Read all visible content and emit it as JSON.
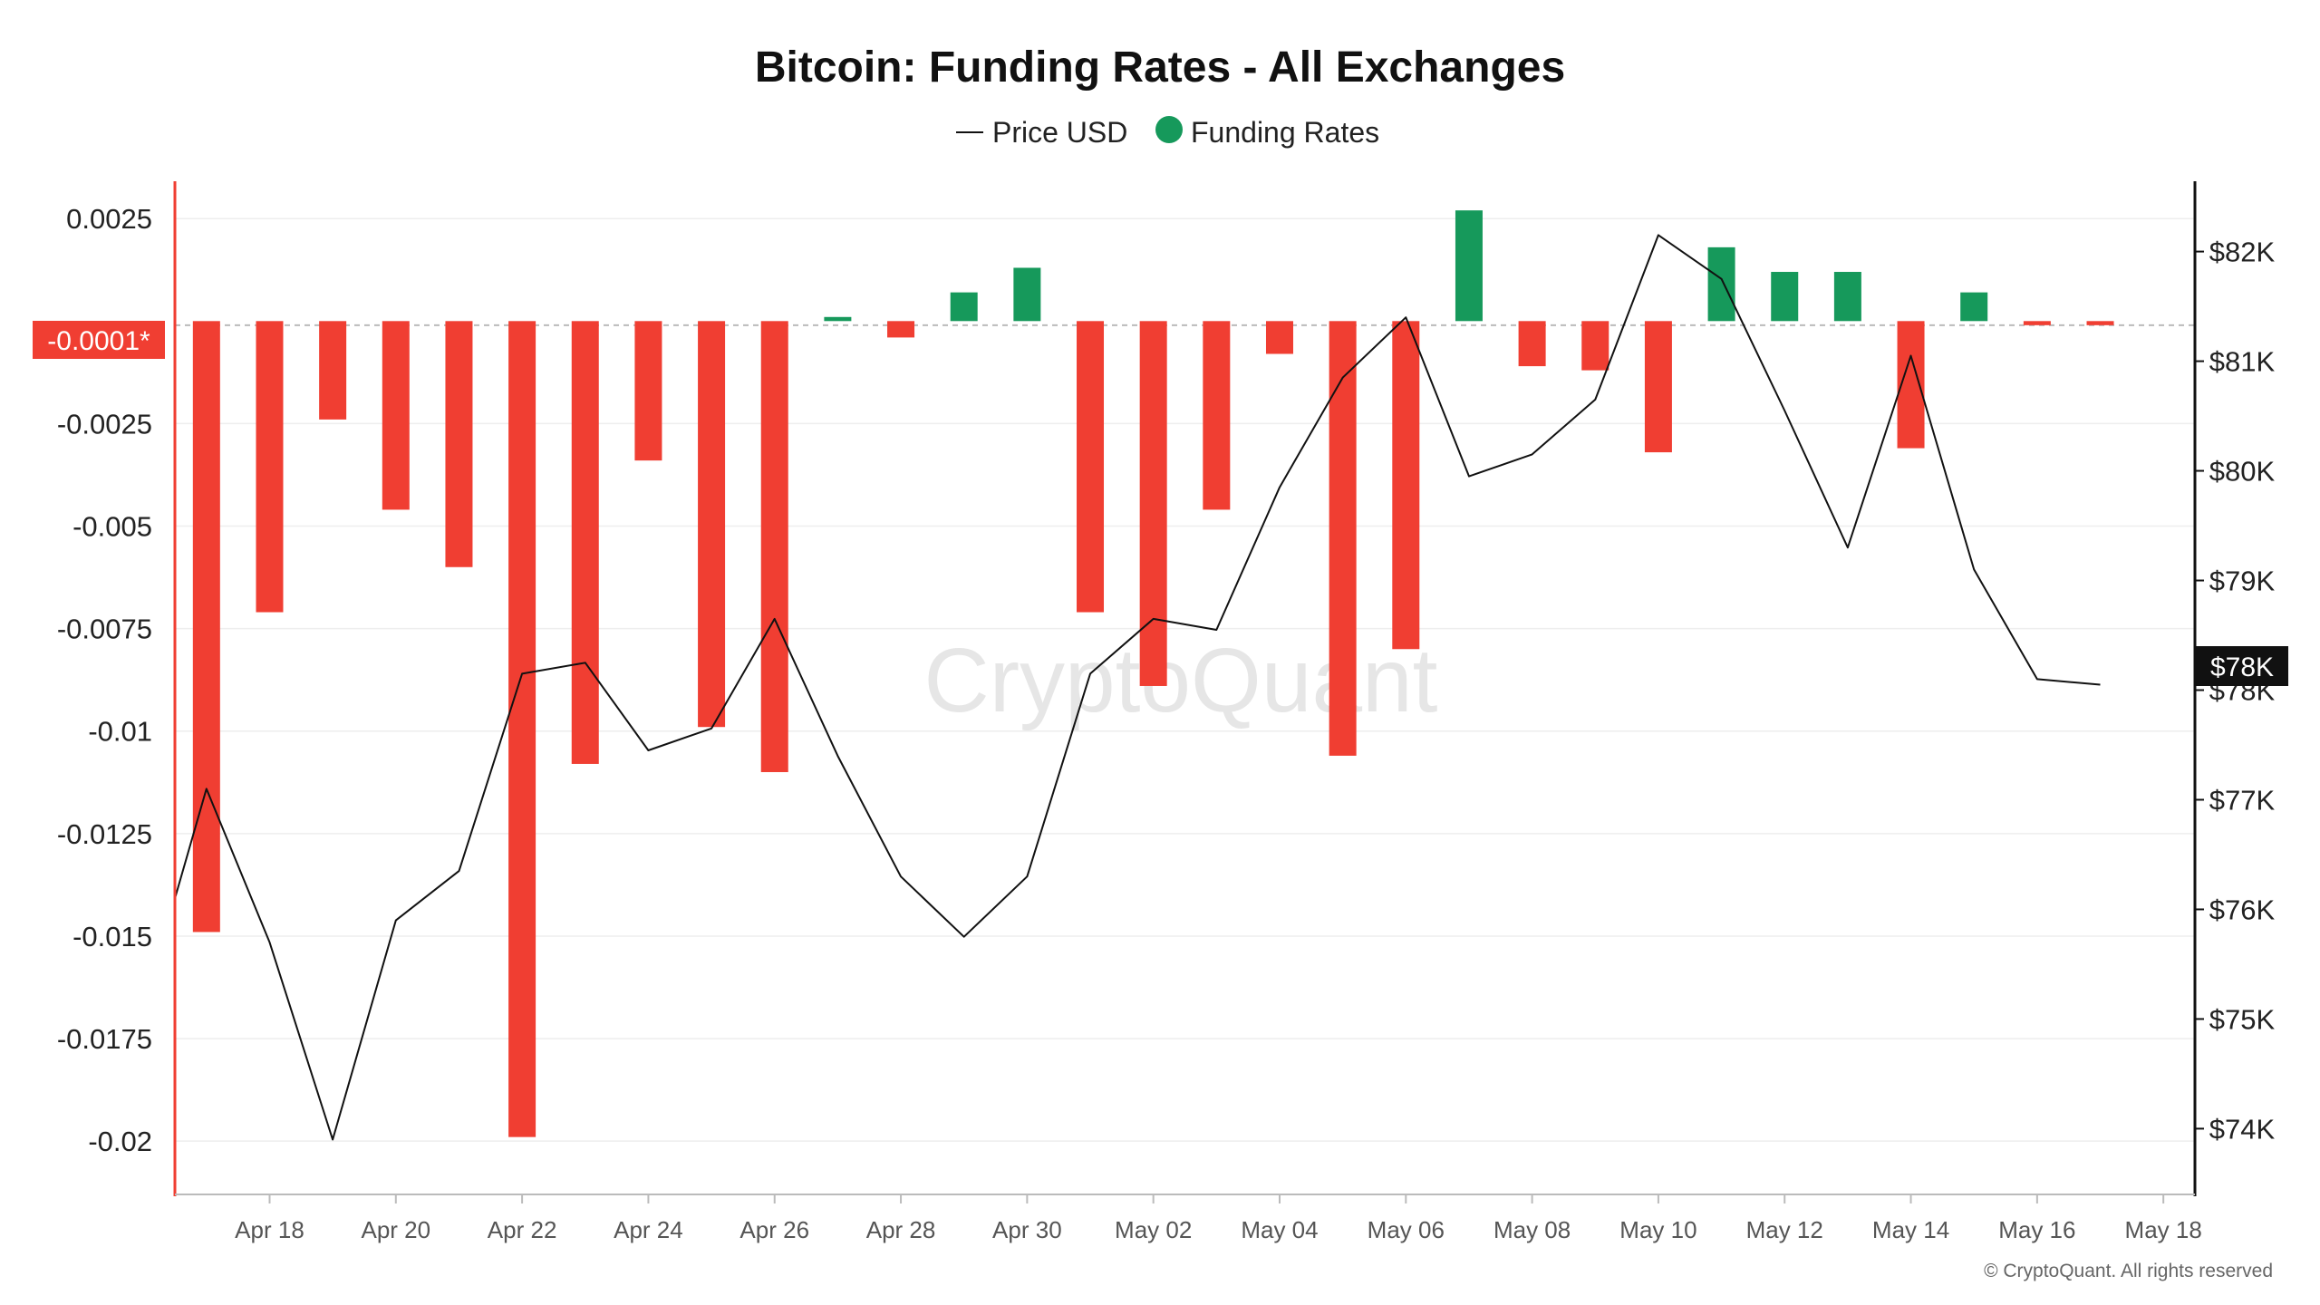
{
  "chart_data": {
    "type": "bar",
    "title": "Bitcoin: Funding Rates - All Exchanges",
    "legend": [
      {
        "label": "Price USD",
        "marker": "line",
        "color": "#111111"
      },
      {
        "label": "Funding Rates",
        "marker": "dot",
        "color": "#16995b"
      }
    ],
    "legend_placement": "top-center",
    "grid": true,
    "y_left": {
      "ylim": [
        -0.0213,
        0.0033
      ],
      "ticks": [
        {
          "value": 0.0025,
          "label": "0.0025"
        },
        {
          "value": -0.0025,
          "label": "-0.0025"
        },
        {
          "value": -0.005,
          "label": "-0.005"
        },
        {
          "value": -0.0075,
          "label": "-0.0075"
        },
        {
          "value": -0.01,
          "label": "-0.01"
        },
        {
          "value": -0.0125,
          "label": "-0.0125"
        },
        {
          "value": -0.015,
          "label": "-0.015"
        },
        {
          "value": -0.0175,
          "label": "-0.0175"
        },
        {
          "value": -0.02,
          "label": "-0.02"
        }
      ],
      "current_value_label": "-0.0001*",
      "current_value": -0.0001
    },
    "y_right": {
      "ylim": [
        73400,
        82600
      ],
      "ticks": [
        {
          "value": 82000,
          "label": "$82K"
        },
        {
          "value": 81000,
          "label": "$81K"
        },
        {
          "value": 80000,
          "label": "$80K"
        },
        {
          "value": 79000,
          "label": "$79K"
        },
        {
          "value": 78000,
          "label": "$78K"
        },
        {
          "value": 77000,
          "label": "$77K"
        },
        {
          "value": 76000,
          "label": "$76K"
        },
        {
          "value": 75000,
          "label": "$75K"
        },
        {
          "value": 74000,
          "label": "$74K"
        }
      ],
      "current_value_label": "$78K",
      "current_value": 78000
    },
    "x_range": [
      "2025-04-16T12:00",
      "2025-05-18T12:00"
    ],
    "x_ticks": [
      {
        "date": "2025-04-18",
        "label": "Apr 18"
      },
      {
        "date": "2025-04-20",
        "label": "Apr 20"
      },
      {
        "date": "2025-04-22",
        "label": "Apr 22"
      },
      {
        "date": "2025-04-24",
        "label": "Apr 24"
      },
      {
        "date": "2025-04-26",
        "label": "Apr 26"
      },
      {
        "date": "2025-04-28",
        "label": "Apr 28"
      },
      {
        "date": "2025-04-30",
        "label": "Apr 30"
      },
      {
        "date": "2025-05-02",
        "label": "May 02"
      },
      {
        "date": "2025-05-04",
        "label": "May 04"
      },
      {
        "date": "2025-05-06",
        "label": "May 06"
      },
      {
        "date": "2025-05-08",
        "label": "May 08"
      },
      {
        "date": "2025-05-10",
        "label": "May 10"
      },
      {
        "date": "2025-05-12",
        "label": "May 12"
      },
      {
        "date": "2025-05-14",
        "label": "May 14"
      },
      {
        "date": "2025-05-16",
        "label": "May 16"
      },
      {
        "date": "2025-05-18",
        "label": "May 18"
      }
    ],
    "series": [
      {
        "name": "Funding Rates",
        "type": "bar",
        "positive_color": "#16995b",
        "negative_color": "#f03e32",
        "points": [
          {
            "date": "2025-04-17",
            "value": -0.0149
          },
          {
            "date": "2025-04-18",
            "value": -0.0071
          },
          {
            "date": "2025-04-19",
            "value": -0.0024
          },
          {
            "date": "2025-04-20",
            "value": -0.0046
          },
          {
            "date": "2025-04-21",
            "value": -0.006
          },
          {
            "date": "2025-04-22",
            "value": -0.0199
          },
          {
            "date": "2025-04-23",
            "value": -0.0108
          },
          {
            "date": "2025-04-24",
            "value": -0.0034
          },
          {
            "date": "2025-04-25",
            "value": -0.0099
          },
          {
            "date": "2025-04-26",
            "value": -0.011
          },
          {
            "date": "2025-04-27",
            "value": 0.0001
          },
          {
            "date": "2025-04-28",
            "value": -0.0004
          },
          {
            "date": "2025-04-29",
            "value": 0.0007
          },
          {
            "date": "2025-04-30",
            "value": 0.0013
          },
          {
            "date": "2025-05-01",
            "value": -0.0071
          },
          {
            "date": "2025-05-02",
            "value": -0.0089
          },
          {
            "date": "2025-05-03",
            "value": -0.0046
          },
          {
            "date": "2025-05-04",
            "value": -0.0008
          },
          {
            "date": "2025-05-05",
            "value": -0.0106
          },
          {
            "date": "2025-05-06",
            "value": -0.008
          },
          {
            "date": "2025-05-07",
            "value": 0.0027
          },
          {
            "date": "2025-05-08",
            "value": -0.0011
          },
          {
            "date": "2025-05-09",
            "value": -0.0012
          },
          {
            "date": "2025-05-10",
            "value": -0.0032
          },
          {
            "date": "2025-05-11",
            "value": 0.0018
          },
          {
            "date": "2025-05-12",
            "value": 0.0012
          },
          {
            "date": "2025-05-13",
            "value": 0.0012
          },
          {
            "date": "2025-05-14",
            "value": -0.0031
          },
          {
            "date": "2025-05-15",
            "value": 0.0007
          },
          {
            "date": "2025-05-16",
            "value": -0.0001
          },
          {
            "date": "2025-05-17",
            "value": -0.0001
          }
        ]
      },
      {
        "name": "Price USD",
        "type": "line",
        "color": "#111111",
        "points": [
          {
            "date": "2025-04-16T12:00",
            "value": 76100
          },
          {
            "date": "2025-04-17",
            "value": 77100
          },
          {
            "date": "2025-04-18",
            "value": 75700
          },
          {
            "date": "2025-04-19",
            "value": 73900
          },
          {
            "date": "2025-04-20",
            "value": 75900
          },
          {
            "date": "2025-04-21",
            "value": 76350
          },
          {
            "date": "2025-04-22",
            "value": 78150
          },
          {
            "date": "2025-04-23",
            "value": 78250
          },
          {
            "date": "2025-04-24",
            "value": 77450
          },
          {
            "date": "2025-04-25",
            "value": 77650
          },
          {
            "date": "2025-04-26",
            "value": 78650
          },
          {
            "date": "2025-04-27",
            "value": 77400
          },
          {
            "date": "2025-04-28",
            "value": 76300
          },
          {
            "date": "2025-04-29",
            "value": 75750
          },
          {
            "date": "2025-04-30",
            "value": 76300
          },
          {
            "date": "2025-05-01",
            "value": 78150
          },
          {
            "date": "2025-05-02",
            "value": 78650
          },
          {
            "date": "2025-05-03",
            "value": 78550
          },
          {
            "date": "2025-05-04",
            "value": 79850
          },
          {
            "date": "2025-05-05",
            "value": 80850
          },
          {
            "date": "2025-05-06",
            "value": 81400
          },
          {
            "date": "2025-05-07",
            "value": 79950
          },
          {
            "date": "2025-05-08",
            "value": 80150
          },
          {
            "date": "2025-05-09",
            "value": 80650
          },
          {
            "date": "2025-05-10",
            "value": 82150
          },
          {
            "date": "2025-05-11",
            "value": 81750
          },
          {
            "date": "2025-05-12",
            "value": 80550
          },
          {
            "date": "2025-05-13",
            "value": 79300
          },
          {
            "date": "2025-05-14",
            "value": 81050
          },
          {
            "date": "2025-05-15",
            "value": 79100
          },
          {
            "date": "2025-05-16",
            "value": 78100
          },
          {
            "date": "2025-05-17",
            "value": 78050
          }
        ]
      }
    ],
    "watermark": "CryptoQuant",
    "credit": "© CryptoQuant. All rights reserved",
    "colors": {
      "accent_left_axis": "#f03e32",
      "right_badge_bg": "#111111",
      "zero_line": "#bbbbbb",
      "grid": "#eeeeee"
    }
  }
}
